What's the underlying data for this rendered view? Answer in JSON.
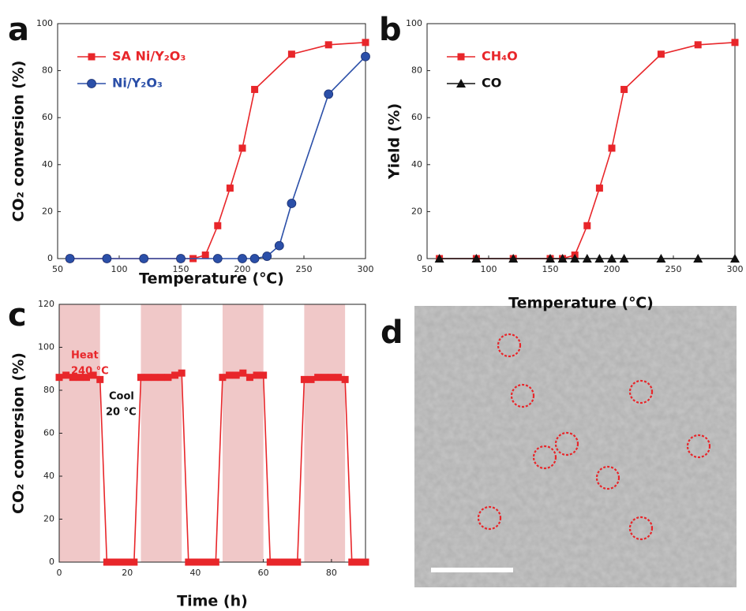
{
  "chart_data": [
    {
      "type": "line",
      "panel_label": "a",
      "xlabel": "Temperature (℃)",
      "ylabel": "CO₂ conversion (%)",
      "xlim": [
        50,
        300
      ],
      "xticks": [
        50,
        100,
        150,
        200,
        250,
        300
      ],
      "ylim": [
        0,
        100
      ],
      "yticks": [
        0,
        20,
        40,
        60,
        80,
        100
      ],
      "legend": "upper left",
      "series": [
        {
          "name": "SA Ni/Y₂O₃",
          "color": "#e8262a",
          "marker": "square",
          "x": [
            60,
            90,
            120,
            150,
            160,
            170,
            180,
            190,
            200,
            210,
            240,
            270,
            300
          ],
          "values": [
            0,
            0,
            0,
            0,
            0,
            1.5,
            14,
            30,
            47,
            72,
            87,
            91,
            92
          ]
        },
        {
          "name": "Ni/Y₂O₃",
          "color": "#2b4fa8",
          "marker": "circle",
          "x": [
            60,
            90,
            120,
            150,
            180,
            200,
            210,
            220,
            230,
            240,
            270,
            300
          ],
          "values": [
            0,
            0,
            0,
            0,
            0,
            0,
            0,
            1,
            5.5,
            23.5,
            70,
            86
          ]
        }
      ]
    },
    {
      "type": "line",
      "panel_label": "b",
      "xlabel": "Temperature (℃)",
      "ylabel": "Yield (%)",
      "xlim": [
        50,
        300
      ],
      "xticks": [
        50,
        100,
        150,
        200,
        250,
        300
      ],
      "ylim": [
        0,
        100
      ],
      "yticks": [
        0,
        20,
        40,
        60,
        80,
        100
      ],
      "legend": "upper left",
      "series": [
        {
          "name": "CH₄O",
          "color": "#e8262a",
          "marker": "square",
          "x": [
            60,
            90,
            120,
            150,
            160,
            170,
            180,
            190,
            200,
            210,
            240,
            270,
            300
          ],
          "values": [
            0,
            0,
            0,
            0,
            0,
            1.5,
            14,
            30,
            47,
            72,
            87,
            91,
            92
          ]
        },
        {
          "name": "CO",
          "color": "#111111",
          "marker": "triangle",
          "x": [
            60,
            90,
            120,
            150,
            160,
            170,
            180,
            190,
            200,
            210,
            240,
            270,
            300
          ],
          "values": [
            0,
            0,
            0,
            0,
            0,
            0,
            0,
            0,
            0,
            0,
            0,
            0,
            0
          ]
        }
      ]
    },
    {
      "type": "line",
      "panel_label": "c",
      "xlabel": "Time (h)",
      "ylabel": "CO₂ conversion (%)",
      "xlim": [
        0,
        90
      ],
      "xticks": [
        0,
        20,
        40,
        60,
        80
      ],
      "ylim": [
        0,
        120
      ],
      "yticks": [
        0,
        20,
        40,
        60,
        80,
        100,
        120
      ],
      "shaded": [
        [
          0,
          12
        ],
        [
          24,
          36
        ],
        [
          48,
          60
        ],
        [
          72,
          84
        ]
      ],
      "shade_color": "#f0c8c8",
      "annotations": [
        {
          "text": "Heat",
          "color": "#e8262a"
        },
        {
          "text": "240 °C",
          "color": "#e8262a"
        },
        {
          "text": "Cool",
          "color": "#111111"
        },
        {
          "text": "20 °C",
          "color": "#111111"
        }
      ],
      "series": [
        {
          "color": "#e8262a",
          "marker": "square",
          "x": [
            0,
            2,
            4,
            6,
            8,
            10,
            12,
            14,
            16,
            18,
            20,
            22,
            24,
            26,
            28,
            30,
            32,
            34,
            36,
            38,
            40,
            42,
            44,
            46,
            48,
            50,
            52,
            54,
            56,
            58,
            60,
            62,
            64,
            66,
            68,
            70,
            72,
            74,
            76,
            78,
            80,
            82,
            84,
            86,
            88,
            90
          ],
          "values": [
            86,
            87,
            86,
            86,
            86,
            87,
            85,
            0,
            0,
            0,
            0,
            0,
            86,
            86,
            86,
            86,
            86,
            87,
            88,
            0,
            0,
            0,
            0,
            0,
            86,
            87,
            87,
            88,
            86,
            87,
            87,
            0,
            0,
            0,
            0,
            0,
            85,
            85,
            86,
            86,
            86,
            86,
            85,
            0,
            0,
            0
          ]
        }
      ]
    }
  ],
  "image_panel": {
    "label": "d"
  }
}
